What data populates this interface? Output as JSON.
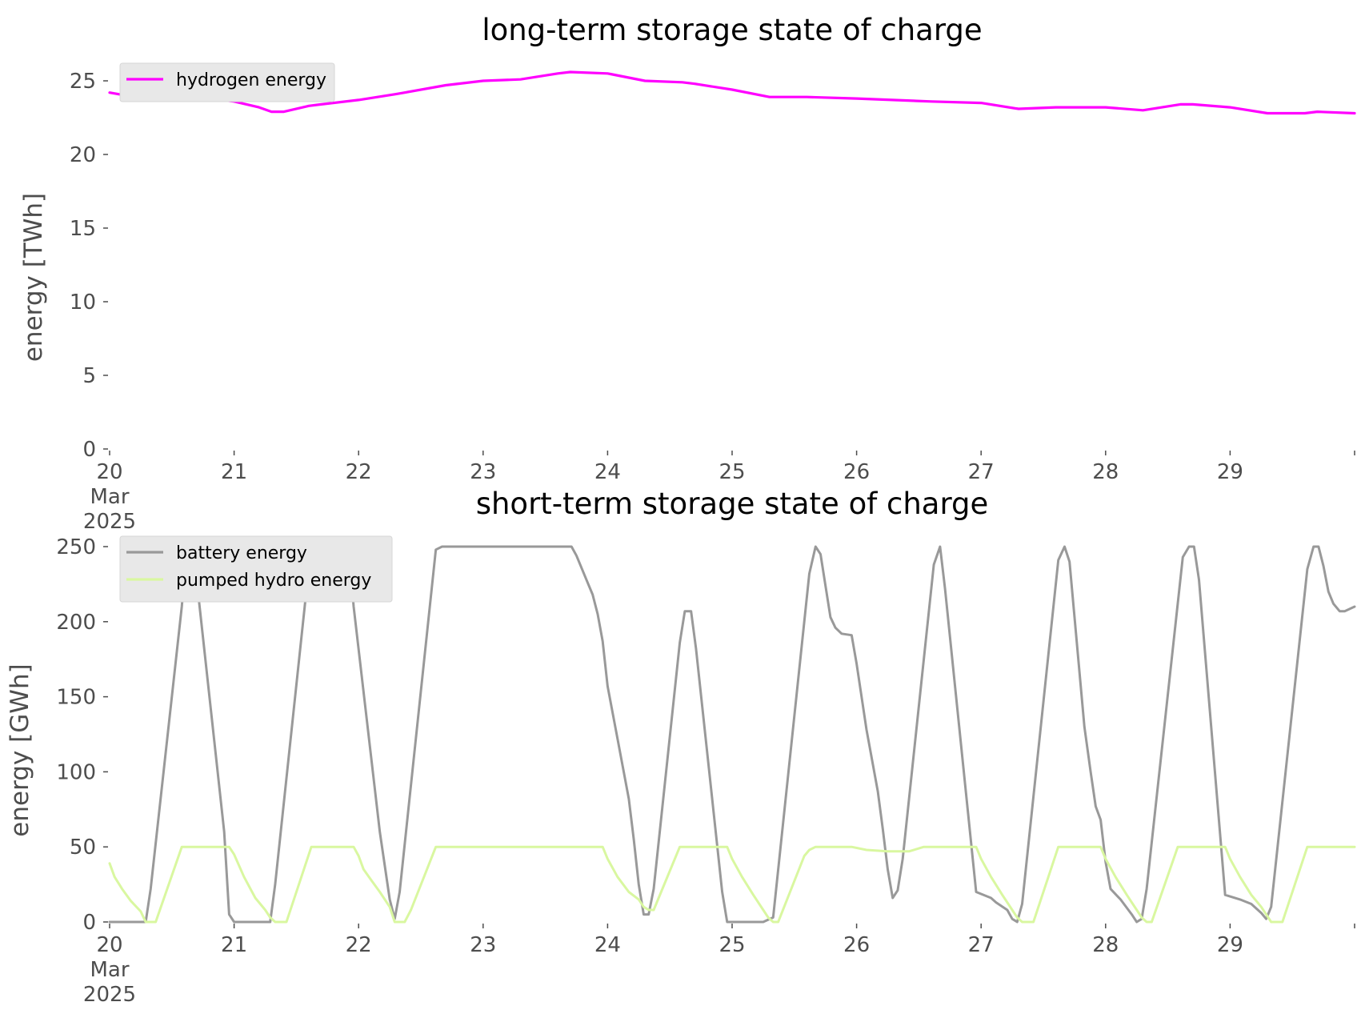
{
  "chart_data": [
    {
      "type": "line",
      "title": "long-term storage state of charge",
      "xlabel": "",
      "ylabel": "energy [TWh]",
      "x_ticks": [
        {
          "day": 20,
          "lines": [
            "20",
            "Mar",
            "2025"
          ]
        },
        {
          "day": 21,
          "lines": [
            "21"
          ]
        },
        {
          "day": 22,
          "lines": [
            "22"
          ]
        },
        {
          "day": 23,
          "lines": [
            "23"
          ]
        },
        {
          "day": 24,
          "lines": [
            "24"
          ]
        },
        {
          "day": 25,
          "lines": [
            "25"
          ]
        },
        {
          "day": 26,
          "lines": [
            "26"
          ]
        },
        {
          "day": 27,
          "lines": [
            "27"
          ]
        },
        {
          "day": 28,
          "lines": [
            "28"
          ]
        },
        {
          "day": 29,
          "lines": [
            "29"
          ]
        }
      ],
      "y_ticks": [
        0,
        5,
        10,
        15,
        20,
        25
      ],
      "xlim": [
        "2025-03-20",
        "2025-03-30"
      ],
      "ylim": [
        0,
        26
      ],
      "grid": false,
      "legend_position": "top-left",
      "series": [
        {
          "name": "hydrogen energy",
          "color": "#ff00ff",
          "points": [
            [
              20.0,
              24.2
            ],
            [
              20.2,
              23.9
            ],
            [
              20.3,
              23.7
            ],
            [
              20.4,
              23.7
            ],
            [
              20.6,
              24.0
            ],
            [
              20.7,
              24.0
            ],
            [
              20.9,
              23.7
            ],
            [
              21.0,
              23.6
            ],
            [
              21.2,
              23.2
            ],
            [
              21.3,
              22.9
            ],
            [
              21.4,
              22.9
            ],
            [
              21.6,
              23.3
            ],
            [
              21.7,
              23.4
            ],
            [
              22.0,
              23.7
            ],
            [
              22.3,
              24.1
            ],
            [
              22.7,
              24.7
            ],
            [
              23.0,
              25.0
            ],
            [
              23.3,
              25.1
            ],
            [
              23.6,
              25.5
            ],
            [
              23.7,
              25.6
            ],
            [
              24.0,
              25.5
            ],
            [
              24.3,
              25.0
            ],
            [
              24.6,
              24.9
            ],
            [
              24.7,
              24.8
            ],
            [
              25.0,
              24.4
            ],
            [
              25.3,
              23.9
            ],
            [
              25.6,
              23.9
            ],
            [
              26.0,
              23.8
            ],
            [
              26.6,
              23.6
            ],
            [
              27.0,
              23.5
            ],
            [
              27.3,
              23.1
            ],
            [
              27.6,
              23.2
            ],
            [
              28.0,
              23.2
            ],
            [
              28.3,
              23.0
            ],
            [
              28.6,
              23.4
            ],
            [
              28.7,
              23.4
            ],
            [
              29.0,
              23.2
            ],
            [
              29.3,
              22.8
            ],
            [
              29.6,
              22.8
            ],
            [
              29.7,
              22.9
            ],
            [
              30.0,
              22.8
            ]
          ]
        }
      ]
    },
    {
      "type": "line",
      "title": "short-term storage state of charge",
      "xlabel": "",
      "ylabel": "energy [GWh]",
      "x_ticks": [
        {
          "day": 20,
          "lines": [
            "20",
            "Mar",
            "2025"
          ]
        },
        {
          "day": 21,
          "lines": [
            "21"
          ]
        },
        {
          "day": 22,
          "lines": [
            "22"
          ]
        },
        {
          "day": 23,
          "lines": [
            "23"
          ]
        },
        {
          "day": 24,
          "lines": [
            "24"
          ]
        },
        {
          "day": 25,
          "lines": [
            "25"
          ]
        },
        {
          "day": 26,
          "lines": [
            "26"
          ]
        },
        {
          "day": 27,
          "lines": [
            "27"
          ]
        },
        {
          "day": 28,
          "lines": [
            "28"
          ]
        },
        {
          "day": 29,
          "lines": [
            "29"
          ]
        }
      ],
      "y_ticks": [
        0,
        50,
        100,
        150,
        200,
        250
      ],
      "xlim": [
        "2025-03-20",
        "2025-03-30"
      ],
      "ylim": [
        0,
        250
      ],
      "grid": false,
      "legend_position": "top-left",
      "series": [
        {
          "name": "battery energy",
          "color": "#999999",
          "points": [
            [
              20.0,
              0
            ],
            [
              20.2,
              0
            ],
            [
              20.29,
              0
            ],
            [
              20.33,
              22
            ],
            [
              20.58,
              210
            ],
            [
              20.62,
              250
            ],
            [
              20.67,
              250
            ],
            [
              20.92,
              60
            ],
            [
              20.96,
              5
            ],
            [
              21.0,
              0
            ],
            [
              21.29,
              0
            ],
            [
              21.33,
              25
            ],
            [
              21.58,
              220
            ],
            [
              21.62,
              242
            ],
            [
              21.83,
              242
            ],
            [
              21.92,
              250
            ],
            [
              21.96,
              210
            ],
            [
              22.17,
              60
            ],
            [
              22.25,
              15
            ],
            [
              22.29,
              2
            ],
            [
              22.33,
              20
            ],
            [
              22.62,
              248
            ],
            [
              22.67,
              250
            ],
            [
              23.71,
              250
            ],
            [
              23.75,
              244
            ],
            [
              23.83,
              228
            ],
            [
              23.88,
              218
            ],
            [
              23.92,
              205
            ],
            [
              23.96,
              187
            ],
            [
              24.0,
              157
            ],
            [
              24.08,
              122
            ],
            [
              24.17,
              82
            ],
            [
              24.21,
              55
            ],
            [
              24.25,
              25
            ],
            [
              24.29,
              5
            ],
            [
              24.33,
              5
            ],
            [
              24.37,
              22
            ],
            [
              24.58,
              186
            ],
            [
              24.62,
              207
            ],
            [
              24.67,
              207
            ],
            [
              24.71,
              182
            ],
            [
              24.92,
              20
            ],
            [
              24.96,
              0
            ],
            [
              25.0,
              0
            ],
            [
              25.25,
              0
            ],
            [
              25.33,
              3
            ],
            [
              25.62,
              232
            ],
            [
              25.67,
              250
            ],
            [
              25.71,
              245
            ],
            [
              25.79,
              203
            ],
            [
              25.83,
              196
            ],
            [
              25.88,
              192
            ],
            [
              25.96,
              191
            ],
            [
              26.0,
              172
            ],
            [
              26.08,
              128
            ],
            [
              26.17,
              87
            ],
            [
              26.21,
              62
            ],
            [
              26.25,
              35
            ],
            [
              26.29,
              16
            ],
            [
              26.33,
              21
            ],
            [
              26.37,
              42
            ],
            [
              26.62,
              238
            ],
            [
              26.67,
              250
            ],
            [
              26.71,
              222
            ],
            [
              26.96,
              20
            ],
            [
              27.08,
              16
            ],
            [
              27.12,
              13
            ],
            [
              27.21,
              8
            ],
            [
              27.25,
              2
            ],
            [
              27.29,
              0
            ],
            [
              27.33,
              12
            ],
            [
              27.62,
              241
            ],
            [
              27.67,
              250
            ],
            [
              27.71,
              240
            ],
            [
              27.83,
              130
            ],
            [
              27.88,
              100
            ],
            [
              27.92,
              77
            ],
            [
              27.96,
              68
            ],
            [
              28.0,
              40
            ],
            [
              28.04,
              22
            ],
            [
              28.12,
              15
            ],
            [
              28.21,
              5
            ],
            [
              28.25,
              0
            ],
            [
              28.29,
              2
            ],
            [
              28.33,
              22
            ],
            [
              28.62,
              243
            ],
            [
              28.67,
              250
            ],
            [
              28.71,
              250
            ],
            [
              28.75,
              228
            ],
            [
              28.96,
              18
            ],
            [
              29.08,
              15
            ],
            [
              29.17,
              12
            ],
            [
              29.25,
              6
            ],
            [
              29.29,
              2
            ],
            [
              29.33,
              10
            ],
            [
              29.62,
              235
            ],
            [
              29.67,
              250
            ],
            [
              29.71,
              250
            ],
            [
              29.75,
              237
            ],
            [
              29.79,
              220
            ],
            [
              29.83,
              212
            ],
            [
              29.88,
              207
            ],
            [
              29.92,
              207
            ],
            [
              30.0,
              210
            ]
          ]
        },
        {
          "name": "pumped hydro energy",
          "color": "#d9f7a0",
          "points": [
            [
              20.0,
              39
            ],
            [
              20.04,
              30
            ],
            [
              20.1,
              22
            ],
            [
              20.17,
              14
            ],
            [
              20.25,
              7
            ],
            [
              20.29,
              0
            ],
            [
              20.37,
              0
            ],
            [
              20.58,
              50
            ],
            [
              20.96,
              50
            ],
            [
              21.0,
              45
            ],
            [
              21.08,
              30
            ],
            [
              21.17,
              16
            ],
            [
              21.25,
              8
            ],
            [
              21.29,
              3
            ],
            [
              21.33,
              0
            ],
            [
              21.42,
              0
            ],
            [
              21.62,
              50
            ],
            [
              21.96,
              50
            ],
            [
              22.0,
              44
            ],
            [
              22.04,
              35
            ],
            [
              22.1,
              28
            ],
            [
              22.17,
              20
            ],
            [
              22.25,
              10
            ],
            [
              22.29,
              0
            ],
            [
              22.37,
              0
            ],
            [
              22.42,
              8
            ],
            [
              22.62,
              50
            ],
            [
              23.96,
              50
            ],
            [
              24.0,
              42
            ],
            [
              24.08,
              30
            ],
            [
              24.17,
              20
            ],
            [
              24.25,
              15
            ],
            [
              24.29,
              10
            ],
            [
              24.33,
              8
            ],
            [
              24.37,
              8
            ],
            [
              24.58,
              50
            ],
            [
              24.96,
              50
            ],
            [
              25.0,
              42
            ],
            [
              25.08,
              30
            ],
            [
              25.17,
              18
            ],
            [
              25.25,
              8
            ],
            [
              25.29,
              3
            ],
            [
              25.33,
              0
            ],
            [
              25.37,
              0
            ],
            [
              25.58,
              44
            ],
            [
              25.62,
              48
            ],
            [
              25.67,
              50
            ],
            [
              25.96,
              50
            ],
            [
              26.08,
              48
            ],
            [
              26.25,
              47
            ],
            [
              26.42,
              47
            ],
            [
              26.54,
              50
            ],
            [
              26.96,
              50
            ],
            [
              27.0,
              42
            ],
            [
              27.08,
              30
            ],
            [
              27.17,
              18
            ],
            [
              27.25,
              8
            ],
            [
              27.29,
              3
            ],
            [
              27.33,
              0
            ],
            [
              27.42,
              0
            ],
            [
              27.62,
              50
            ],
            [
              27.96,
              50
            ],
            [
              28.0,
              42
            ],
            [
              28.08,
              30
            ],
            [
              28.17,
              18
            ],
            [
              28.25,
              8
            ],
            [
              28.29,
              3
            ],
            [
              28.33,
              0
            ],
            [
              28.37,
              0
            ],
            [
              28.58,
              50
            ],
            [
              28.96,
              50
            ],
            [
              29.0,
              42
            ],
            [
              29.08,
              30
            ],
            [
              29.17,
              18
            ],
            [
              29.25,
              10
            ],
            [
              29.29,
              5
            ],
            [
              29.33,
              0
            ],
            [
              29.42,
              0
            ],
            [
              29.62,
              50
            ],
            [
              30.0,
              50
            ]
          ]
        }
      ]
    }
  ]
}
